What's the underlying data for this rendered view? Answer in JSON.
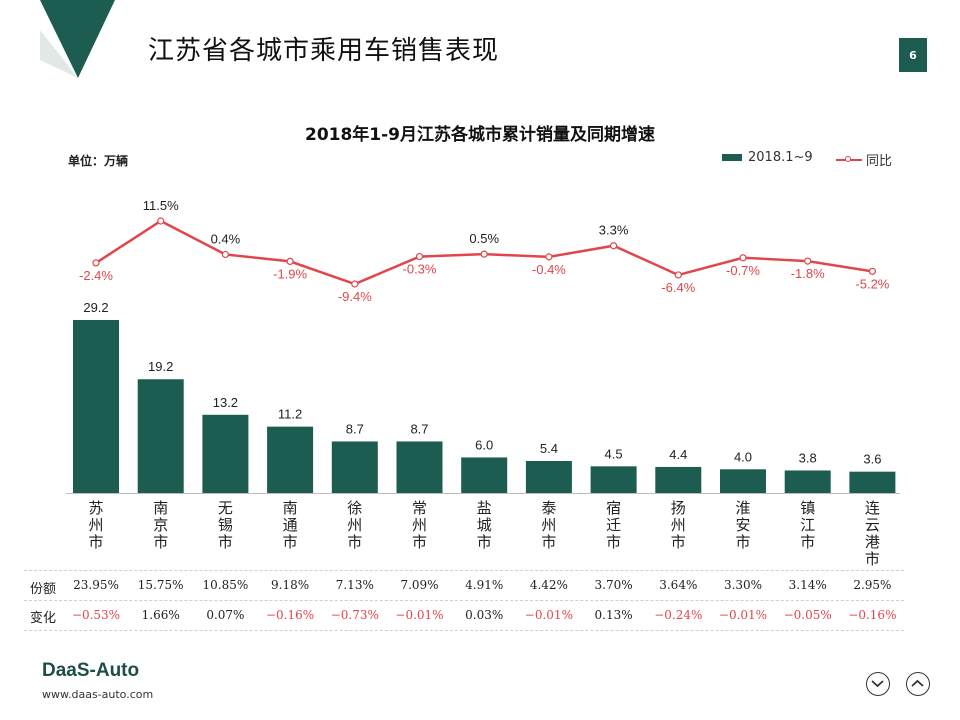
{
  "header": {
    "title": "江苏省各城市乘用车销售表现",
    "page_number": "6"
  },
  "brand": {
    "logo": "DaaS-Auto",
    "url": "www.daas-auto.com",
    "color": "#1d5c50"
  },
  "chart_data": {
    "type": "bar",
    "title": "2018年1-9月江苏各城市累计销量及同期增速",
    "unit_label": "单位：万辆",
    "categories": [
      "苏州市",
      "南京市",
      "无锡市",
      "南通市",
      "徐州市",
      "常州市",
      "盐城市",
      "泰州市",
      "宿迁市",
      "扬州市",
      "淮安市",
      "镇江市",
      "连云港市"
    ],
    "series": [
      {
        "name": "2018.1~9",
        "type": "bar",
        "color": "#1d5c50",
        "values": [
          29.2,
          19.2,
          13.2,
          11.2,
          8.7,
          8.7,
          6.0,
          5.4,
          4.5,
          4.4,
          4.0,
          3.8,
          3.6
        ],
        "labels": [
          "29.2",
          "19.2",
          "13.2",
          "11.2",
          "8.7",
          "8.7",
          "6.0",
          "5.4",
          "4.5",
          "4.4",
          "4.0",
          "3.8",
          "3.6"
        ]
      },
      {
        "name": "同比",
        "type": "line",
        "color": "#e0474c",
        "values": [
          -2.4,
          11.5,
          0.4,
          -1.9,
          -9.4,
          -0.3,
          0.5,
          -0.4,
          3.3,
          -6.4,
          -0.7,
          -1.8,
          -5.2
        ],
        "labels": [
          "-2.4%",
          "11.5%",
          "0.4%",
          "-1.9%",
          "-9.4%",
          "-0.3%",
          "0.5%",
          "-0.4%",
          "3.3%",
          "-6.4%",
          "-0.7%",
          "-1.8%",
          "-5.2%"
        ]
      }
    ],
    "ylim_bar": [
      0,
      30
    ],
    "ylim_line": [
      -15,
      13
    ],
    "legend_position": "top-right"
  },
  "table": {
    "share_label": "份额",
    "change_label": "变化",
    "shares": [
      "23.95%",
      "15.75%",
      "10.85%",
      "9.18%",
      "7.13%",
      "7.09%",
      "4.91%",
      "4.42%",
      "3.70%",
      "3.64%",
      "3.30%",
      "3.14%",
      "2.95%"
    ],
    "changes": [
      "−0.53%",
      "1.66%",
      "0.07%",
      "−0.16%",
      "−0.73%",
      "−0.01%",
      "0.03%",
      "−0.01%",
      "0.13%",
      "−0.24%",
      "−0.01%",
      "−0.05%",
      "−0.16%"
    ],
    "negative_color": "#e0474c",
    "positive_color": "#222222"
  }
}
